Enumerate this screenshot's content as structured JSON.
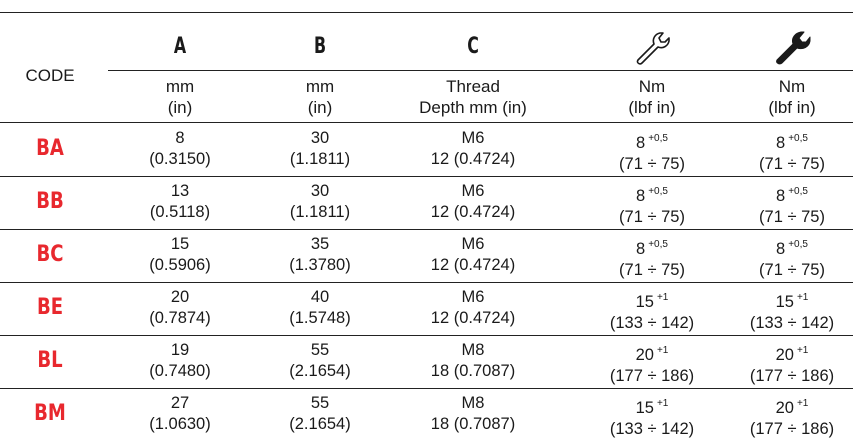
{
  "header": {
    "code_label": "CODE",
    "col_a": "A",
    "col_b": "B",
    "col_c": "C",
    "icon_d": "open-wrench-icon",
    "icon_e": "solid-wrench-icon",
    "units": {
      "a_line1": "mm",
      "a_line2": "(in)",
      "b_line1": "mm",
      "b_line2": "(in)",
      "c_line1": "Thread",
      "c_line2": "Depth mm (in)",
      "d_line1": "Nm",
      "d_line2": "(lbf in)",
      "e_line1": "Nm",
      "e_line2": "(lbf in)"
    }
  },
  "rows": [
    {
      "code": "BA",
      "a1": "8",
      "a2": "(0.3150)",
      "b1": "30",
      "b2": "(1.1811)",
      "c1": "M6",
      "c2": "12 (0.4724)",
      "d1": "8",
      "dsup": "+0,5",
      "d2": "(71 ÷ 75)",
      "e1": "8",
      "esup": "+0,5",
      "e2": "(71 ÷ 75)"
    },
    {
      "code": "BB",
      "a1": "13",
      "a2": "(0.5118)",
      "b1": "30",
      "b2": "(1.1811)",
      "c1": "M6",
      "c2": "12 (0.4724)",
      "d1": "8",
      "dsup": "+0,5",
      "d2": "(71 ÷ 75)",
      "e1": "8",
      "esup": "+0,5",
      "e2": "(71 ÷ 75)"
    },
    {
      "code": "BC",
      "a1": "15",
      "a2": "(0.5906)",
      "b1": "35",
      "b2": "(1.3780)",
      "c1": "M6",
      "c2": "12 (0.4724)",
      "d1": "8",
      "dsup": "+0,5",
      "d2": "(71 ÷ 75)",
      "e1": "8",
      "esup": "+0,5",
      "e2": "(71 ÷ 75)"
    },
    {
      "code": "BE",
      "a1": "20",
      "a2": "(0.7874)",
      "b1": "40",
      "b2": "(1.5748)",
      "c1": "M6",
      "c2": "12 (0.4724)",
      "d1": "15",
      "dsup": "+1",
      "d2": "(133 ÷ 142)",
      "e1": "15",
      "esup": "+1",
      "e2": "(133 ÷ 142)"
    },
    {
      "code": "BL",
      "a1": "19",
      "a2": "(0.7480)",
      "b1": "55",
      "b2": "(2.1654)",
      "c1": "M8",
      "c2": "18 (0.7087)",
      "d1": "20",
      "dsup": "+1",
      "d2": "(177 ÷ 186)",
      "e1": "20",
      "esup": "+1",
      "e2": "(177 ÷ 186)"
    },
    {
      "code": "BM",
      "a1": "27",
      "a2": "(1.0630)",
      "b1": "55",
      "b2": "(2.1654)",
      "c1": "M8",
      "c2": "18 (0.7087)",
      "d1": "15",
      "dsup": "+1",
      "d2": "(133 ÷ 142)",
      "e1": "20",
      "esup": "+1",
      "e2": "(177 ÷ 186)"
    }
  ],
  "colors": {
    "code_text": "#e8282e",
    "rule": "#222222"
  }
}
